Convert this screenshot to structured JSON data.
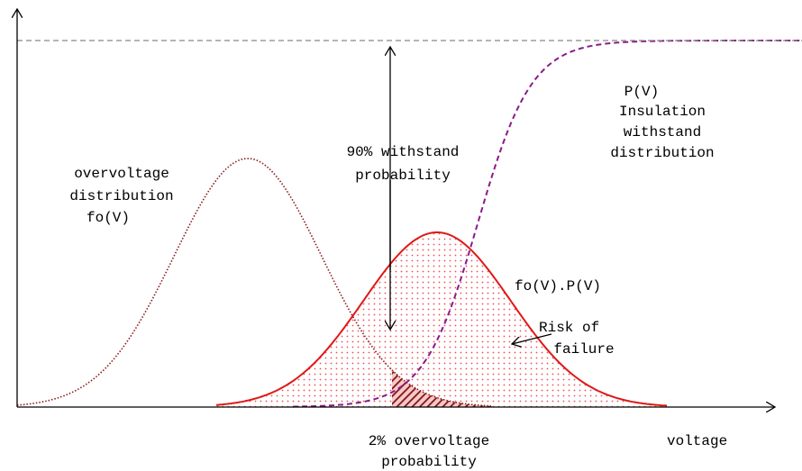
{
  "labels": {
    "overvoltage": [
      "overvoltage",
      "distribution",
      "fo(V)"
    ],
    "withstand": [
      "90% withstand",
      "probability"
    ],
    "insulation": [
      "P(V)",
      "Insulation",
      "withstand",
      "distribution"
    ],
    "product": "fo(V).P(V)",
    "risk": [
      "Risk of",
      "failure"
    ],
    "overvoltage_prob": [
      "2% overvoltage",
      "probability"
    ],
    "x_axis": "voltage"
  }
}
